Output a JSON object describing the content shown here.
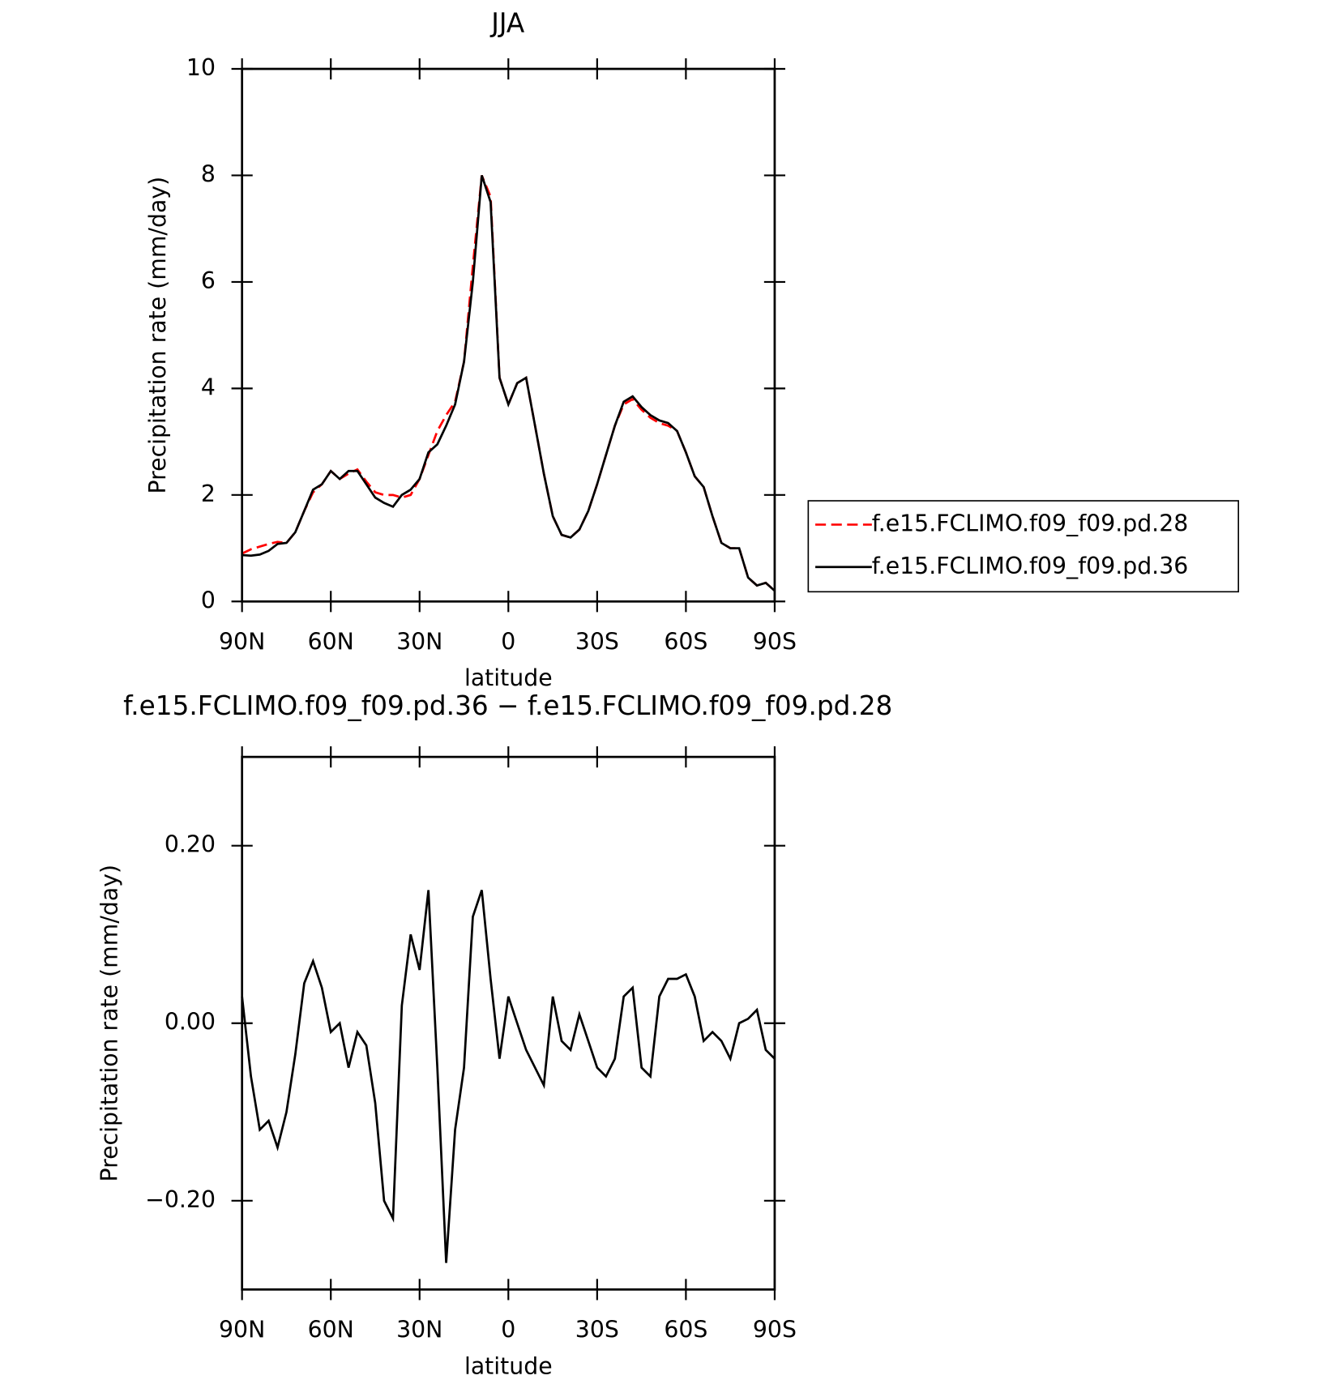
{
  "chart_data": [
    {
      "type": "line",
      "title": "JJA",
      "xlabel": "latitude",
      "ylabel": "Precipitation rate (mm/day)",
      "x": [
        90,
        87,
        84,
        81,
        78,
        75,
        72,
        69,
        66,
        63,
        60,
        57,
        54,
        51,
        48,
        45,
        42,
        39,
        36,
        33,
        30,
        27,
        24,
        21,
        18,
        15,
        12,
        9,
        6,
        3,
        0,
        -3,
        -6,
        -9,
        -12,
        -15,
        -18,
        -21,
        -24,
        -27,
        -30,
        -33,
        -36,
        -39,
        -42,
        -45,
        -48,
        -51,
        -54,
        -57,
        -60,
        -63,
        -66,
        -69,
        -72,
        -75,
        -78,
        -81,
        -84,
        -87,
        -90
      ],
      "series": [
        {
          "name": "f.e15.FCLIMO.f09_f09.pd.28",
          "color": "#ff0000",
          "line_style": "dashed",
          "values": [
            0.9,
            0.98,
            1.03,
            1.08,
            1.12,
            1.1,
            1.3,
            1.7,
            2.05,
            2.2,
            2.45,
            2.3,
            2.4,
            2.48,
            2.25,
            2.05,
            2.0,
            2.0,
            1.95,
            2.0,
            2.3,
            2.75,
            3.2,
            3.5,
            3.75,
            4.5,
            6.3,
            8.0,
            7.6,
            4.2,
            3.7,
            4.1,
            4.2,
            3.3,
            2.4,
            1.6,
            1.25,
            1.2,
            1.35,
            1.7,
            2.2,
            2.75,
            3.3,
            3.7,
            3.8,
            3.6,
            3.45,
            3.35,
            3.3,
            3.2,
            2.8,
            2.35,
            2.15,
            1.6,
            1.1,
            1.0,
            1.0,
            0.45,
            0.3,
            0.35,
            0.2
          ]
        },
        {
          "name": "f.e15.FCLIMO.f09_f09.pd.36",
          "color": "#000000",
          "line_style": "solid",
          "values": [
            0.87,
            0.86,
            0.88,
            0.95,
            1.08,
            1.1,
            1.3,
            1.7,
            2.1,
            2.2,
            2.45,
            2.3,
            2.45,
            2.45,
            2.2,
            1.95,
            1.85,
            1.78,
            2.0,
            2.1,
            2.3,
            2.8,
            2.95,
            3.3,
            3.7,
            4.5,
            6.0,
            8.0,
            7.5,
            4.2,
            3.7,
            4.1,
            4.2,
            3.3,
            2.4,
            1.6,
            1.25,
            1.2,
            1.35,
            1.7,
            2.2,
            2.75,
            3.3,
            3.75,
            3.85,
            3.65,
            3.5,
            3.4,
            3.35,
            3.2,
            2.8,
            2.35,
            2.15,
            1.6,
            1.1,
            1.0,
            1.0,
            0.45,
            0.3,
            0.35,
            0.2
          ]
        }
      ],
      "xlim": [
        90,
        -90
      ],
      "xticks": [
        {
          "value": 90,
          "label": "90N"
        },
        {
          "value": 60,
          "label": "60N"
        },
        {
          "value": 30,
          "label": "30N"
        },
        0,
        {
          "value": -30,
          "label": "30S"
        },
        {
          "value": -60,
          "label": "60S"
        },
        {
          "value": -90,
          "label": "90S"
        }
      ],
      "ylim": [
        0,
        10
      ],
      "yticks": [
        0,
        2,
        4,
        6,
        8,
        10
      ],
      "legend": "right"
    },
    {
      "type": "line",
      "title": "f.e15.FCLIMO.f09_f09.pd.36 − f.e15.FCLIMO.f09_f09.pd.28",
      "xlabel": "latitude",
      "ylabel": "Precipitation rate (mm/day)",
      "x": [
        90,
        87,
        84,
        81,
        78,
        75,
        72,
        69,
        66,
        63,
        60,
        57,
        54,
        51,
        48,
        45,
        42,
        39,
        36,
        33,
        30,
        27,
        24,
        21,
        18,
        15,
        12,
        9,
        6,
        3,
        0,
        -3,
        -6,
        -9,
        -12,
        -15,
        -18,
        -21,
        -24,
        -27,
        -30,
        -33,
        -36,
        -39,
        -42,
        -45,
        -48,
        -51,
        -54,
        -57,
        -60,
        -63,
        -66,
        -69,
        -72,
        -75,
        -78,
        -81,
        -84,
        -87,
        -90
      ],
      "series": [
        {
          "color": "#000000",
          "line_style": "solid",
          "values": [
            0.03,
            -0.06,
            -0.12,
            -0.11,
            -0.14,
            -0.1,
            -0.035,
            0.045,
            0.07,
            0.04,
            -0.01,
            0.0,
            -0.05,
            -0.01,
            -0.025,
            -0.09,
            -0.2,
            -0.22,
            0.02,
            0.1,
            0.06,
            0.15,
            -0.05,
            -0.27,
            -0.12,
            -0.05,
            0.12,
            0.15,
            0.05,
            -0.04,
            0.03,
            0.0,
            -0.03,
            -0.05,
            -0.07,
            0.03,
            -0.02,
            -0.03,
            0.01,
            -0.02,
            -0.05,
            -0.06,
            -0.04,
            0.03,
            0.04,
            -0.05,
            -0.06,
            0.03,
            0.05,
            0.05,
            0.055,
            0.03,
            -0.02,
            -0.01,
            -0.02,
            -0.04,
            0.0,
            0.005,
            0.015,
            -0.03,
            -0.04
          ]
        }
      ],
      "xlim": [
        90,
        -90
      ],
      "xticks": [
        {
          "value": 90,
          "label": "90N"
        },
        {
          "value": 60,
          "label": "60N"
        },
        {
          "value": 30,
          "label": "30N"
        },
        0,
        {
          "value": -30,
          "label": "30S"
        },
        {
          "value": -60,
          "label": "60S"
        },
        {
          "value": -90,
          "label": "90S"
        }
      ],
      "ylim": [
        -0.3,
        0.3
      ],
      "yticks": [
        {
          "value": -0.2,
          "label": "−0.20"
        },
        {
          "value": 0,
          "label": "0.00"
        },
        {
          "value": 0.2,
          "label": "0.20"
        }
      ]
    }
  ]
}
